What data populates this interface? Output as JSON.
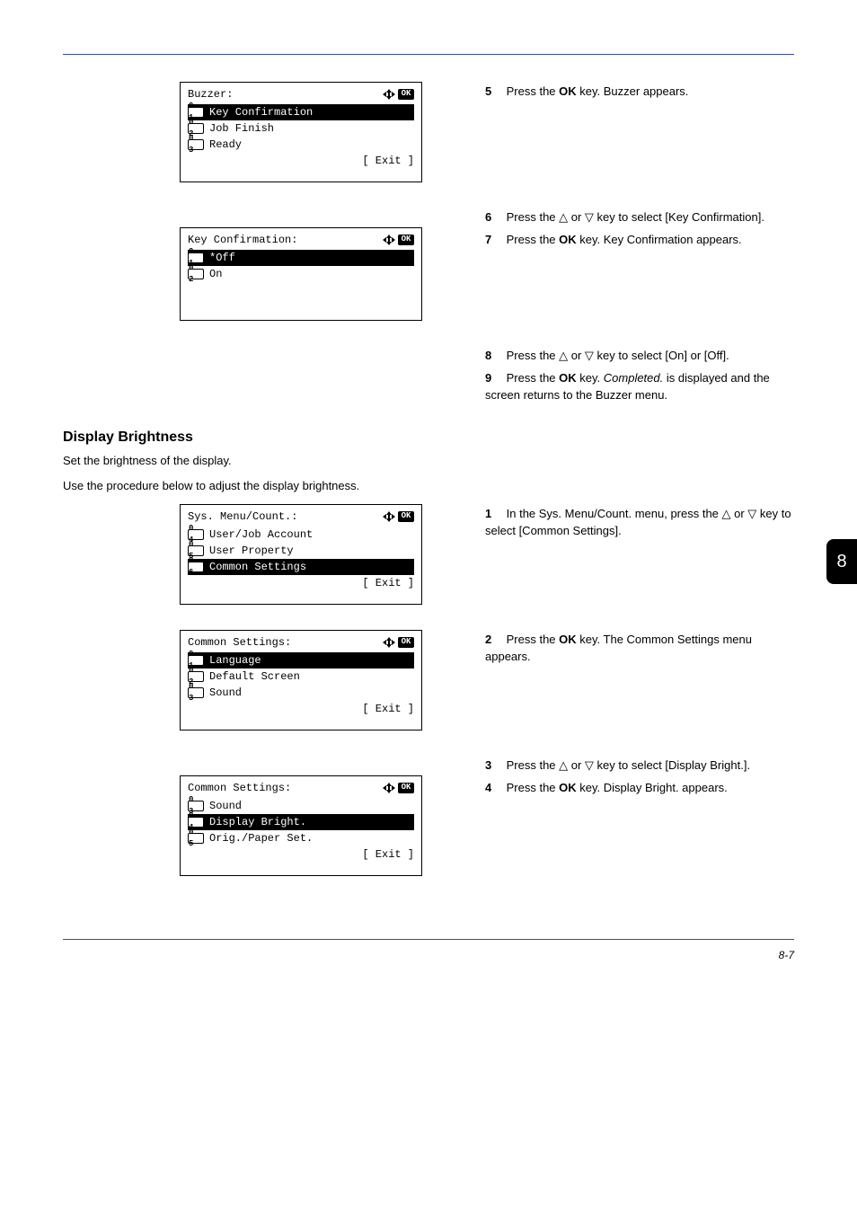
{
  "colors": {
    "rule": "#3a4aa8",
    "tab_bg": "#000000",
    "tab_fg": "#ffffff"
  },
  "tab_number": "8",
  "lcd1": {
    "title": "Buzzer:",
    "items": [
      {
        "num": "0 1",
        "label": "Key Confirmation",
        "selected": true
      },
      {
        "num": "0 2",
        "label": "Job Finish",
        "selected": false
      },
      {
        "num": "0 3",
        "label": "Ready",
        "selected": false
      }
    ],
    "softkey": "[ Exit  ]"
  },
  "lcd2": {
    "title": "Key Confirmation:",
    "items": [
      {
        "num": "0 1",
        "label": "*Off",
        "selected": true
      },
      {
        "num": "0 2",
        "label": "On",
        "selected": false
      }
    ]
  },
  "lcd3": {
    "title": "Sys. Menu/Count.:",
    "items": [
      {
        "num": "0 4",
        "label": "User/Job Account",
        "selected": false
      },
      {
        "num": "0 5",
        "label": "User Property",
        "selected": false
      },
      {
        "num": "0 6",
        "label": "Common Settings",
        "selected": true
      }
    ],
    "softkey": "[ Exit  ]"
  },
  "lcd4": {
    "title": "Common Settings:",
    "items": [
      {
        "num": "0 1",
        "label": "Language",
        "selected": true
      },
      {
        "num": "0 2",
        "label": "Default Screen",
        "selected": false
      },
      {
        "num": "0 3",
        "label": "Sound",
        "selected": false
      }
    ],
    "softkey": "[ Exit  ]"
  },
  "lcd5": {
    "title": "Common Settings:",
    "items": [
      {
        "num": "0 3",
        "label": "Sound",
        "selected": false
      },
      {
        "num": "0 4",
        "label": "Display Bright.",
        "selected": true
      },
      {
        "num": "0 5",
        "label": "Orig./Paper Set.",
        "selected": false
      }
    ],
    "softkey": "[ Exit  ]"
  },
  "steps_a": {
    "s5": {
      "n": "5",
      "pre": "Press the ",
      "key": "OK",
      "post": " key. Buzzer appears."
    },
    "s6": {
      "n": "6",
      "text": "Press the △ or ▽ key to select [Key Confirmation]."
    },
    "s7": {
      "n": "7",
      "pre": "Press the ",
      "key": "OK",
      "post": " key. Key Confirmation appears."
    },
    "s8": {
      "n": "8",
      "text": "Press the △ or ▽ key to select [On] or [Off]."
    },
    "s9": {
      "n": "9",
      "pre": "Press the ",
      "key": "OK",
      "mid": " key. ",
      "emph": "Completed.",
      "post": " is displayed and the screen returns to the Buzzer menu."
    }
  },
  "section": {
    "heading": "Display Brightness",
    "p1": "Set the brightness of the display.",
    "p2": "Use the procedure below to adjust the display brightness."
  },
  "steps_b": {
    "s1": {
      "n": "1",
      "text": "In the Sys. Menu/Count. menu, press the △ or ▽ key to select [Common Settings]."
    },
    "s2": {
      "n": "2",
      "pre": "Press the ",
      "key": "OK",
      "post": " key. The Common Settings menu appears."
    },
    "s3": {
      "n": "3",
      "text": "Press the △ or ▽ key to select [Display Bright.]."
    },
    "s4": {
      "n": "4",
      "pre": "Press the ",
      "key": "OK",
      "post": " key. Display Bright. appears."
    }
  },
  "footer": "8-7"
}
